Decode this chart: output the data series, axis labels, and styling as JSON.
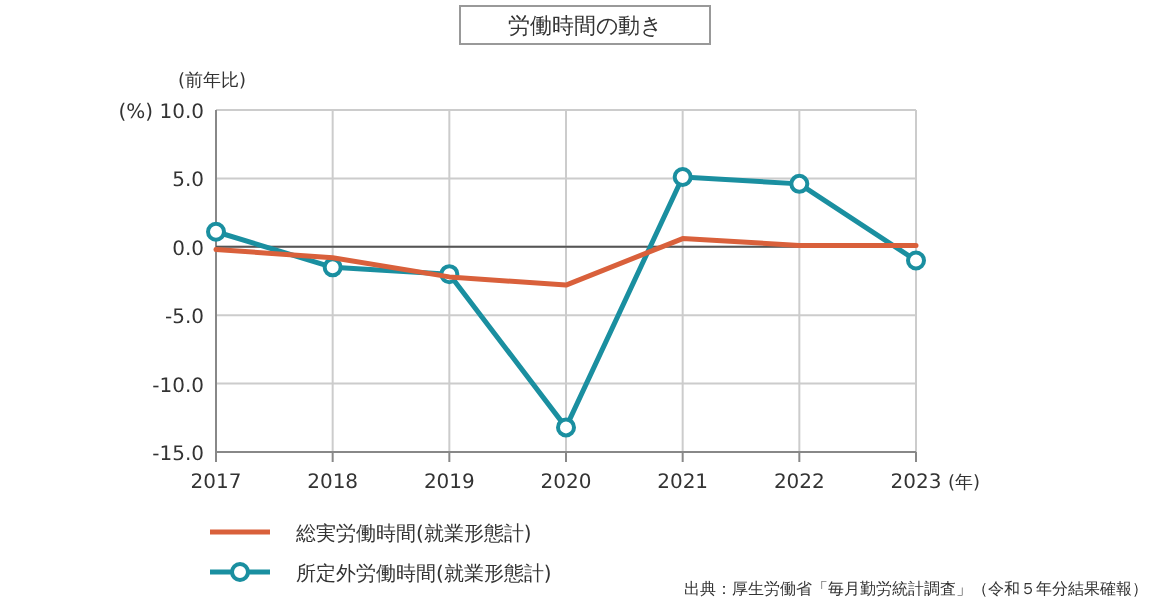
{
  "chart_data": {
    "type": "line",
    "title": "労働時間の動き",
    "ylabel": "(前年比)",
    "xlabel": "(年)",
    "x": [
      2017,
      2018,
      2019,
      2020,
      2021,
      2022,
      2023
    ],
    "xlim": [
      2017,
      2023
    ],
    "xticks": [
      2017,
      2018,
      2019,
      2020,
      2021,
      2022,
      2023
    ],
    "ylim": [
      -15,
      10
    ],
    "yticks": [
      {
        "value": 10,
        "label": "(%) 10.0"
      },
      {
        "value": 5,
        "label": "5.0"
      },
      {
        "value": 0,
        "label": "0.0"
      },
      {
        "value": -5,
        "label": "-5.0"
      },
      {
        "value": -10,
        "label": "-10.0"
      },
      {
        "value": -15,
        "label": "-15.0"
      }
    ],
    "grid": true,
    "legend": "bottom left",
    "ref_lines": [
      {
        "axis": "y",
        "value": 0,
        "color": "#555555"
      }
    ],
    "series": [
      {
        "name": "総実労働時間(就業形態計)",
        "color": "#d9603b",
        "marker": "none",
        "values": [
          -0.2,
          -0.8,
          -2.2,
          -2.8,
          0.6,
          0.1,
          0.1
        ]
      },
      {
        "name": "所定外労働時間(就業形態計)",
        "color": "#1a8fa0",
        "marker": "circle",
        "values": [
          1.1,
          -1.5,
          -2.0,
          -13.2,
          5.1,
          4.6,
          -1.0
        ]
      }
    ],
    "annotations": [
      "出典：厚生労働省「毎月勤労統計調査」（令和５年分結果確報）"
    ]
  }
}
